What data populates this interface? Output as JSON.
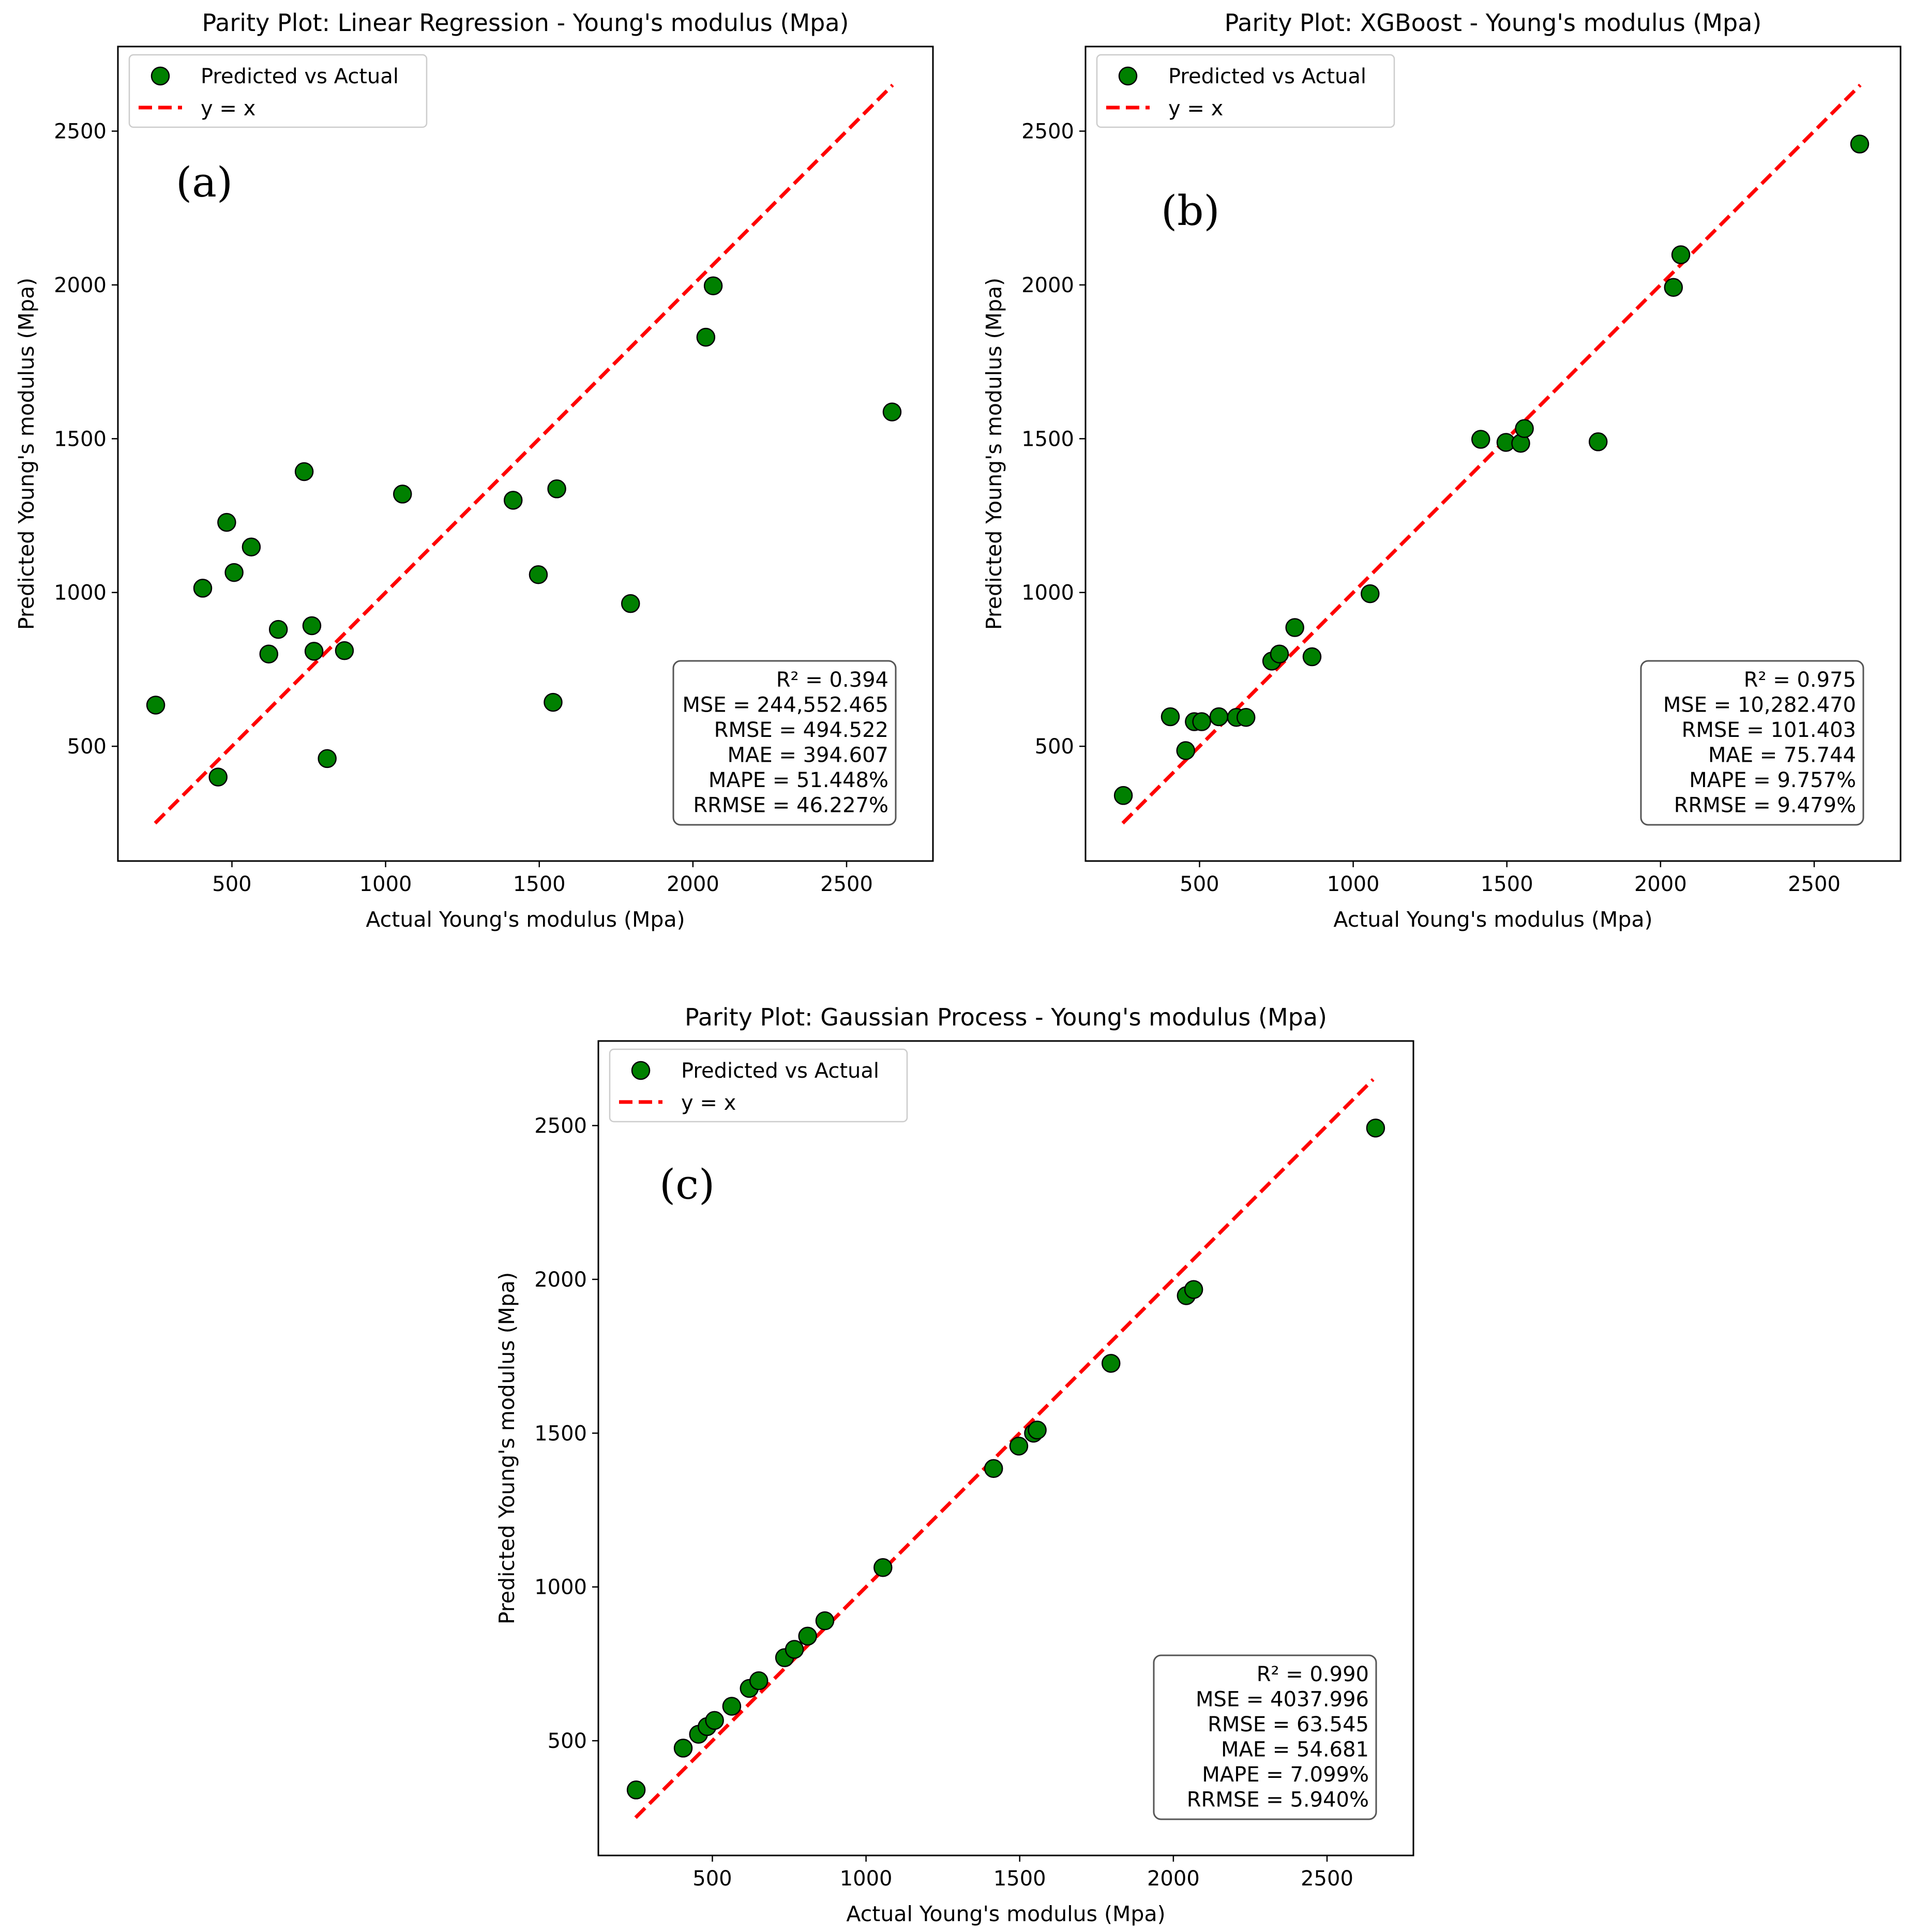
{
  "chart_data": [
    {
      "type": "scatter",
      "panel_label": "(a)",
      "title": "Parity Plot: Linear Regression - Young's modulus  (Mpa)",
      "xlabel": "Actual Young's modulus  (Mpa)",
      "ylabel": "Predicted Young's modulus  (Mpa)",
      "xlim": [
        129,
        2781
      ],
      "ylim": [
        127,
        2775
      ],
      "xticks": [
        500,
        1000,
        1500,
        2000,
        2500
      ],
      "yticks": [
        500,
        1000,
        1500,
        2000,
        2500
      ],
      "legend": {
        "position": "top-left",
        "scatter_label": "Predicted vs Actual",
        "line_label": "y = x"
      },
      "reference_line": {
        "name": "y = x",
        "from": 250,
        "to": 2650
      },
      "series": [
        {
          "name": "Predicted vs Actual",
          "points": [
            {
              "x": 252,
              "y": 634
            },
            {
              "x": 405,
              "y": 1014
            },
            {
              "x": 455,
              "y": 400
            },
            {
              "x": 483,
              "y": 1228
            },
            {
              "x": 507,
              "y": 1065
            },
            {
              "x": 563,
              "y": 1148
            },
            {
              "x": 620,
              "y": 800
            },
            {
              "x": 651,
              "y": 880
            },
            {
              "x": 735,
              "y": 1393
            },
            {
              "x": 760,
              "y": 892
            },
            {
              "x": 767,
              "y": 809
            },
            {
              "x": 810,
              "y": 460
            },
            {
              "x": 866,
              "y": 811
            },
            {
              "x": 1055,
              "y": 1320
            },
            {
              "x": 1415,
              "y": 1300
            },
            {
              "x": 1497,
              "y": 1058
            },
            {
              "x": 1545,
              "y": 643
            },
            {
              "x": 1557,
              "y": 1337
            },
            {
              "x": 1797,
              "y": 964
            },
            {
              "x": 2042,
              "y": 1830
            },
            {
              "x": 2066,
              "y": 1997
            },
            {
              "x": 2648,
              "y": 1587
            }
          ]
        }
      ],
      "metrics": [
        "R² = 0.394",
        "MSE = 244,552.465",
        "RMSE = 494.522",
        "MAE = 394.607",
        "MAPE = 51.448%",
        "RRMSE = 46.227%"
      ],
      "colors": {
        "marker": "#008000",
        "marker_edge": "#000000",
        "line": "#ff0000"
      }
    },
    {
      "type": "scatter",
      "panel_label": "(b)",
      "title": "Parity Plot: XGBoost - Young's modulus  (Mpa)",
      "xlabel": "Actual Young's modulus  (Mpa)",
      "ylabel": "Predicted Young's modulus  (Mpa)",
      "xlim": [
        129,
        2781
      ],
      "ylim": [
        127,
        2775
      ],
      "xticks": [
        500,
        1000,
        1500,
        2000,
        2500
      ],
      "yticks": [
        500,
        1000,
        1500,
        2000,
        2500
      ],
      "legend": {
        "position": "top-left",
        "scatter_label": "Predicted vs Actual",
        "line_label": "y = x"
      },
      "reference_line": {
        "name": "y = x",
        "from": 250,
        "to": 2650
      },
      "series": [
        {
          "name": "Predicted vs Actual",
          "points": [
            {
              "x": 252,
              "y": 340
            },
            {
              "x": 405,
              "y": 596
            },
            {
              "x": 455,
              "y": 486
            },
            {
              "x": 483,
              "y": 580
            },
            {
              "x": 507,
              "y": 580
            },
            {
              "x": 563,
              "y": 596
            },
            {
              "x": 620,
              "y": 594
            },
            {
              "x": 651,
              "y": 594
            },
            {
              "x": 735,
              "y": 777
            },
            {
              "x": 760,
              "y": 800
            },
            {
              "x": 810,
              "y": 886
            },
            {
              "x": 866,
              "y": 791
            },
            {
              "x": 1055,
              "y": 996
            },
            {
              "x": 1415,
              "y": 1498
            },
            {
              "x": 1497,
              "y": 1488
            },
            {
              "x": 1545,
              "y": 1485
            },
            {
              "x": 1557,
              "y": 1533
            },
            {
              "x": 1797,
              "y": 1490
            },
            {
              "x": 2042,
              "y": 1992
            },
            {
              "x": 2066,
              "y": 2098
            },
            {
              "x": 2648,
              "y": 2458
            }
          ]
        }
      ],
      "metrics": [
        "R² = 0.975",
        "MSE = 10,282.470",
        "RMSE = 101.403",
        "MAE = 75.744",
        "MAPE = 9.757%",
        "RRMSE = 9.479%"
      ],
      "colors": {
        "marker": "#008000",
        "marker_edge": "#000000",
        "line": "#ff0000"
      }
    },
    {
      "type": "scatter",
      "panel_label": "(c)",
      "title": "Parity Plot: Gaussian Process - Young's modulus  (Mpa)",
      "xlabel": "Actual Young's modulus  (Mpa)",
      "ylabel": "Predicted Young's modulus  (Mpa)",
      "xlim": [
        129,
        2781
      ],
      "ylim": [
        127,
        2775
      ],
      "xticks": [
        500,
        1000,
        1500,
        2000,
        2500
      ],
      "yticks": [
        500,
        1000,
        1500,
        2000,
        2500
      ],
      "legend": {
        "position": "top-left",
        "scatter_label": "Predicted vs Actual",
        "line_label": "y = x"
      },
      "reference_line": {
        "name": "y = x",
        "from": 250,
        "to": 2650
      },
      "series": [
        {
          "name": "Predicted vs Actual",
          "points": [
            {
              "x": 252,
              "y": 340
            },
            {
              "x": 405,
              "y": 476
            },
            {
              "x": 455,
              "y": 521
            },
            {
              "x": 483,
              "y": 546
            },
            {
              "x": 507,
              "y": 566
            },
            {
              "x": 563,
              "y": 612
            },
            {
              "x": 620,
              "y": 670
            },
            {
              "x": 651,
              "y": 695
            },
            {
              "x": 735,
              "y": 770
            },
            {
              "x": 767,
              "y": 797
            },
            {
              "x": 810,
              "y": 840
            },
            {
              "x": 866,
              "y": 890
            },
            {
              "x": 1055,
              "y": 1063
            },
            {
              "x": 1415,
              "y": 1385
            },
            {
              "x": 1497,
              "y": 1458
            },
            {
              "x": 1545,
              "y": 1500
            },
            {
              "x": 1557,
              "y": 1510
            },
            {
              "x": 1797,
              "y": 1727
            },
            {
              "x": 2042,
              "y": 1947
            },
            {
              "x": 2066,
              "y": 1967
            },
            {
              "x": 2658,
              "y": 2492
            }
          ]
        }
      ],
      "metrics": [
        "R² = 0.990",
        "MSE = 4037.996",
        "RMSE = 63.545",
        "MAE = 54.681",
        "MAPE = 7.099%",
        "RRMSE = 5.940%"
      ],
      "colors": {
        "marker": "#008000",
        "marker_edge": "#000000",
        "line": "#ff0000"
      }
    }
  ]
}
